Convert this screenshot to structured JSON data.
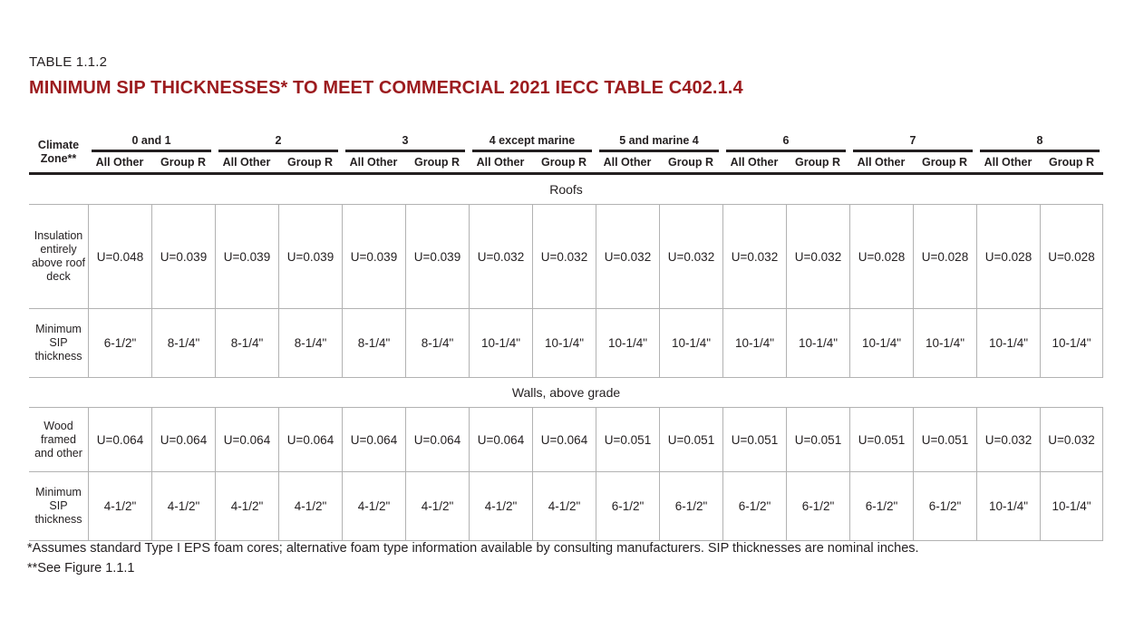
{
  "page": {
    "table_label": "TABLE 1.1.2",
    "title": "MINIMUM SIP THICKNESSES* TO MEET COMMERCIAL 2021 IECC TABLE C402.1.4",
    "title_color": "#9c1b1e"
  },
  "table": {
    "corner_header": "Climate Zone**",
    "zone_groups": [
      {
        "label": "0 and 1"
      },
      {
        "label": "2"
      },
      {
        "label": "3"
      },
      {
        "label": "4 except marine"
      },
      {
        "label": "5 and marine 4"
      },
      {
        "label": "6"
      },
      {
        "label": "7"
      },
      {
        "label": "8"
      }
    ],
    "sub_headers": [
      "All Other",
      "Group R"
    ],
    "sections": [
      {
        "title": "Roofs",
        "rows": [
          {
            "label": "Insulation entirely above roof deck",
            "values": [
              "U=0.048",
              "U=0.039",
              "U=0.039",
              "U=0.039",
              "U=0.039",
              "U=0.039",
              "U=0.032",
              "U=0.032",
              "U=0.032",
              "U=0.032",
              "U=0.032",
              "U=0.032",
              "U=0.028",
              "U=0.028",
              "U=0.028",
              "U=0.028"
            ]
          },
          {
            "label": "Minimum SIP thickness",
            "values": [
              "6-1/2\"",
              "8-1/4\"",
              "8-1/4\"",
              "8-1/4\"",
              "8-1/4\"",
              "8-1/4\"",
              "10-1/4\"",
              "10-1/4\"",
              "10-1/4\"",
              "10-1/4\"",
              "10-1/4\"",
              "10-1/4\"",
              "10-1/4\"",
              "10-1/4\"",
              "10-1/4\"",
              "10-1/4\""
            ]
          }
        ]
      },
      {
        "title": "Walls, above grade",
        "rows": [
          {
            "label": "Wood framed and other",
            "values": [
              "U=0.064",
              "U=0.064",
              "U=0.064",
              "U=0.064",
              "U=0.064",
              "U=0.064",
              "U=0.064",
              "U=0.064",
              "U=0.051",
              "U=0.051",
              "U=0.051",
              "U=0.051",
              "U=0.051",
              "U=0.051",
              "U=0.032",
              "U=0.032"
            ]
          },
          {
            "label": "Minimum SIP thickness",
            "values": [
              "4-1/2\"",
              "4-1/2\"",
              "4-1/2\"",
              "4-1/2\"",
              "4-1/2\"",
              "4-1/2\"",
              "4-1/2\"",
              "4-1/2\"",
              "6-1/2\"",
              "6-1/2\"",
              "6-1/2\"",
              "6-1/2\"",
              "6-1/2\"",
              "6-1/2\"",
              "10-1/4\"",
              "10-1/4\""
            ]
          }
        ]
      }
    ]
  },
  "footnotes": [
    "*Assumes standard Type I EPS foam cores; alternative foam type information available by consulting manufacturers. SIP thicknesses are nominal inches.",
    "**See Figure 1.1.1"
  ]
}
